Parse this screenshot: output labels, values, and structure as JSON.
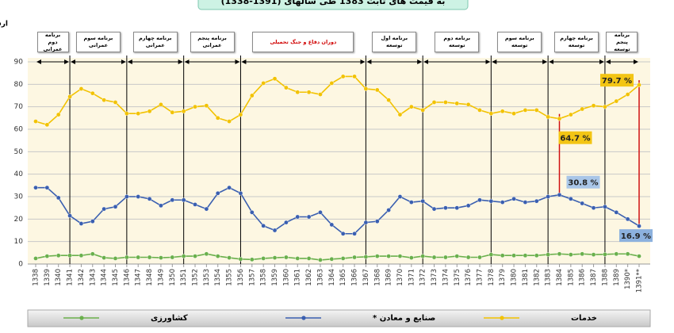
{
  "chart_data": {
    "type": "line",
    "title": "به قیمت های ثابت 1383 طی سالهای (1391-1338)",
    "y_label": "ارقام: سهم به درصد",
    "categories": [
      "1338",
      "1339",
      "1340",
      "1341",
      "1342",
      "1343",
      "1344",
      "1345",
      "1346",
      "1347",
      "1348",
      "1349",
      "1350",
      "1351",
      "1352",
      "1353",
      "1354",
      "1355",
      "1356",
      "1357",
      "1358",
      "1359",
      "1360",
      "1361",
      "1362",
      "1363",
      "1364",
      "1365",
      "1366",
      "1367",
      "1368",
      "1369",
      "1370",
      "1371",
      "1372",
      "1373",
      "1374",
      "1375",
      "1376",
      "1377",
      "1378",
      "1379",
      "1380",
      "1381",
      "1382",
      "1383",
      "1384",
      "1385",
      "1386",
      "1387",
      "1388",
      "1389",
      "1390*",
      "1391**"
    ],
    "series": [
      {
        "name": "خدمات",
        "color": "#f2c200",
        "values": [
          63.5,
          62,
          66.5,
          74.5,
          78,
          76,
          73,
          72,
          67,
          67,
          68,
          71,
          67.5,
          68,
          70,
          70.5,
          65,
          63.5,
          66.5,
          75,
          80.5,
          82.5,
          78.5,
          76.5,
          76.5,
          75.5,
          80.5,
          83.5,
          83.5,
          78,
          77.5,
          73,
          66.5,
          70,
          68.5,
          72,
          72,
          71.5,
          71,
          68.5,
          67,
          68,
          67,
          68.5,
          68.5,
          65.5,
          64.7,
          66.5,
          69,
          70.5,
          70,
          72.5,
          75.5,
          79.7
        ],
        "value_labels": [
          null,
          null,
          null,
          null,
          null,
          null,
          null,
          null,
          null,
          null,
          null,
          null,
          null,
          null,
          null,
          null,
          null,
          null,
          null,
          null,
          null,
          null,
          null,
          null,
          null,
          null,
          null,
          null,
          null,
          null,
          null,
          null,
          null,
          null,
          null,
          null,
          null,
          null,
          null,
          null,
          null,
          null,
          null,
          null,
          null,
          null,
          "64.7 %",
          null,
          null,
          null,
          null,
          null,
          null,
          "79.7 %"
        ]
      },
      {
        "name": "صنایع و معادن *",
        "color": "#3a5fb0",
        "values": [
          34,
          34,
          29.5,
          21.5,
          18,
          19,
          24.5,
          25.5,
          30,
          30,
          29,
          26,
          28.5,
          28.5,
          26.5,
          24.5,
          31.5,
          34,
          31.5,
          23,
          17,
          15,
          18.5,
          21,
          21,
          23,
          17.5,
          13.5,
          13.5,
          18.5,
          19,
          24,
          30,
          27.5,
          28,
          24.5,
          25,
          25,
          26,
          28.5,
          28,
          27.5,
          29,
          27.5,
          28,
          30,
          30.8,
          29,
          27,
          25,
          25.5,
          23,
          20,
          16.9
        ],
        "value_labels": [
          null,
          null,
          null,
          null,
          null,
          null,
          null,
          null,
          null,
          null,
          null,
          null,
          null,
          null,
          null,
          null,
          null,
          null,
          null,
          null,
          null,
          null,
          null,
          null,
          null,
          null,
          null,
          null,
          null,
          null,
          null,
          null,
          null,
          null,
          null,
          null,
          null,
          null,
          null,
          null,
          null,
          null,
          null,
          null,
          null,
          null,
          "30.8 %",
          null,
          null,
          null,
          null,
          null,
          null,
          "16.9 %"
        ]
      },
      {
        "name": "کشاورزی",
        "color": "#6ab04c",
        "values": [
          2.5,
          3.5,
          3.8,
          3.8,
          3.8,
          4.5,
          2.8,
          2.5,
          3,
          3,
          3,
          2.8,
          3,
          3.5,
          3.5,
          4.5,
          3.5,
          2.8,
          2.2,
          2,
          2.5,
          2.8,
          3,
          2.5,
          2.5,
          1.8,
          2.2,
          2.5,
          3,
          3.2,
          3.5,
          3.5,
          3.5,
          2.8,
          3.5,
          3,
          3,
          3.5,
          3,
          3,
          4.2,
          3.8,
          3.8,
          3.8,
          3.8,
          4.2,
          4.5,
          4.2,
          4.5,
          4.2,
          4.3,
          4.5,
          4.5,
          3.5
        ]
      }
    ],
    "periods": [
      {
        "label": "برنامه دوم عمرانی",
        "start": "1338",
        "end": "1341"
      },
      {
        "label": "برنامه سوم عمرانی",
        "start": "1341",
        "end": "1346"
      },
      {
        "label": "برنامه چهارم عمرانی",
        "start": "1346",
        "end": "1351"
      },
      {
        "label": "برنامه پنجم عمرانی",
        "start": "1351",
        "end": "1356"
      },
      {
        "label": "دوران دفاع و جنگ تحمیلی",
        "start": "1356",
        "end": "1367",
        "color": "#d00000"
      },
      {
        "label": "برنامه اول توسعه",
        "start": "1367",
        "end": "1372"
      },
      {
        "label": "برنامه دوم توسعه",
        "start": "1372",
        "end": "1378"
      },
      {
        "label": "برنامه سوم توسعه",
        "start": "1378",
        "end": "1383"
      },
      {
        "label": "برنامه چهارم توسعه",
        "start": "1383",
        "end": "1388"
      },
      {
        "label": "برنامه پنجم توسعه",
        "start": "1388",
        "end": "1391**"
      }
    ],
    "ylim": [
      0,
      90
    ],
    "yticks": [
      0,
      10,
      20,
      30,
      40,
      50,
      60,
      70,
      80,
      90
    ],
    "grid": true
  }
}
